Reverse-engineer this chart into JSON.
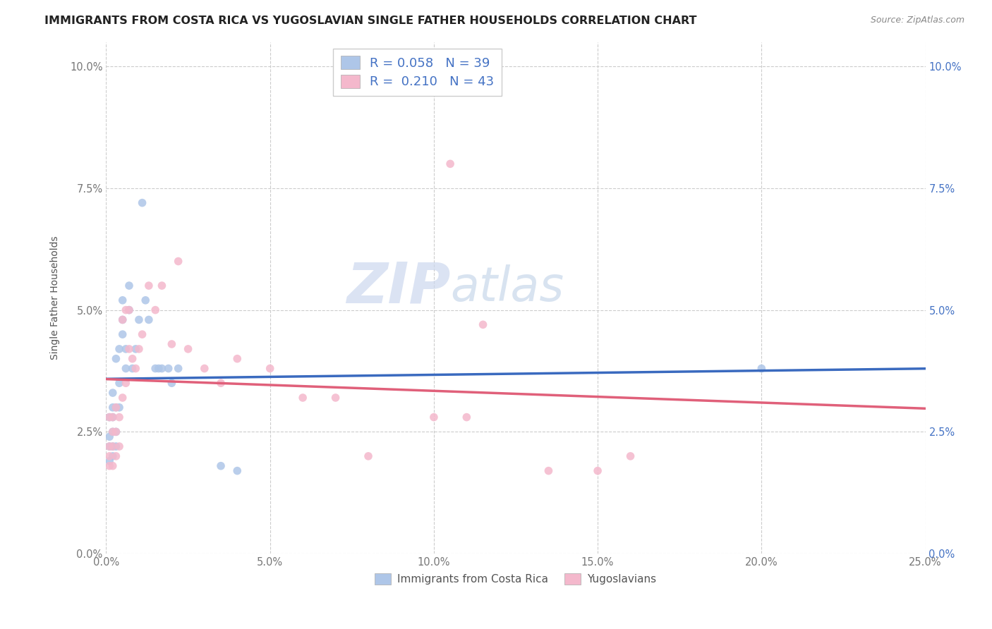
{
  "title": "IMMIGRANTS FROM COSTA RICA VS YUGOSLAVIAN SINGLE FATHER HOUSEHOLDS CORRELATION CHART",
  "source_text": "Source: ZipAtlas.com",
  "ylabel": "Single Father Households",
  "xlim": [
    0.0,
    0.25
  ],
  "ylim": [
    0.0,
    0.105
  ],
  "xticks": [
    0.0,
    0.05,
    0.1,
    0.15,
    0.2,
    0.25
  ],
  "yticks": [
    0.0,
    0.025,
    0.05,
    0.075,
    0.1
  ],
  "xticklabels": [
    "0.0%",
    "5.0%",
    "10.0%",
    "15.0%",
    "20.0%",
    "25.0%"
  ],
  "yticklabels": [
    "0.0%",
    "2.5%",
    "5.0%",
    "7.5%",
    "10.0%"
  ],
  "legend_label1": "Immigrants from Costa Rica",
  "legend_label2": "Yugoslavians",
  "R1": 0.058,
  "N1": 39,
  "R2": 0.21,
  "N2": 43,
  "color1": "#aec6e8",
  "color2": "#f4b8cc",
  "line_color1": "#3a6abf",
  "line_color2": "#e0607a",
  "legend_text_color": "#4472C4",
  "background_color": "#ffffff",
  "watermark_color": "#ccd8ee",
  "title_fontsize": 11.5,
  "axis_fontsize": 10,
  "tick_fontsize": 10.5,
  "scatter1_x": [
    0.001,
    0.001,
    0.001,
    0.001,
    0.002,
    0.002,
    0.002,
    0.002,
    0.002,
    0.002,
    0.003,
    0.003,
    0.003,
    0.003,
    0.004,
    0.004,
    0.004,
    0.005,
    0.005,
    0.005,
    0.006,
    0.006,
    0.007,
    0.007,
    0.008,
    0.009,
    0.01,
    0.011,
    0.012,
    0.013,
    0.015,
    0.016,
    0.017,
    0.019,
    0.02,
    0.022,
    0.035,
    0.04,
    0.2
  ],
  "scatter1_y": [
    0.019,
    0.022,
    0.024,
    0.028,
    0.02,
    0.022,
    0.025,
    0.028,
    0.03,
    0.033,
    0.022,
    0.025,
    0.03,
    0.04,
    0.03,
    0.035,
    0.042,
    0.045,
    0.048,
    0.052,
    0.038,
    0.042,
    0.05,
    0.055,
    0.038,
    0.042,
    0.048,
    0.072,
    0.052,
    0.048,
    0.038,
    0.038,
    0.038,
    0.038,
    0.035,
    0.038,
    0.018,
    0.017,
    0.038
  ],
  "scatter2_x": [
    0.001,
    0.001,
    0.001,
    0.001,
    0.002,
    0.002,
    0.002,
    0.002,
    0.003,
    0.003,
    0.003,
    0.004,
    0.004,
    0.005,
    0.005,
    0.006,
    0.006,
    0.007,
    0.007,
    0.008,
    0.009,
    0.01,
    0.011,
    0.013,
    0.015,
    0.017,
    0.02,
    0.022,
    0.025,
    0.03,
    0.035,
    0.04,
    0.05,
    0.06,
    0.07,
    0.08,
    0.1,
    0.105,
    0.11,
    0.115,
    0.135,
    0.15,
    0.16
  ],
  "scatter2_y": [
    0.018,
    0.02,
    0.022,
    0.028,
    0.018,
    0.022,
    0.025,
    0.028,
    0.02,
    0.025,
    0.03,
    0.022,
    0.028,
    0.032,
    0.048,
    0.035,
    0.05,
    0.042,
    0.05,
    0.04,
    0.038,
    0.042,
    0.045,
    0.055,
    0.05,
    0.055,
    0.043,
    0.06,
    0.042,
    0.038,
    0.035,
    0.04,
    0.038,
    0.032,
    0.032,
    0.02,
    0.028,
    0.08,
    0.028,
    0.047,
    0.017,
    0.017,
    0.02
  ]
}
